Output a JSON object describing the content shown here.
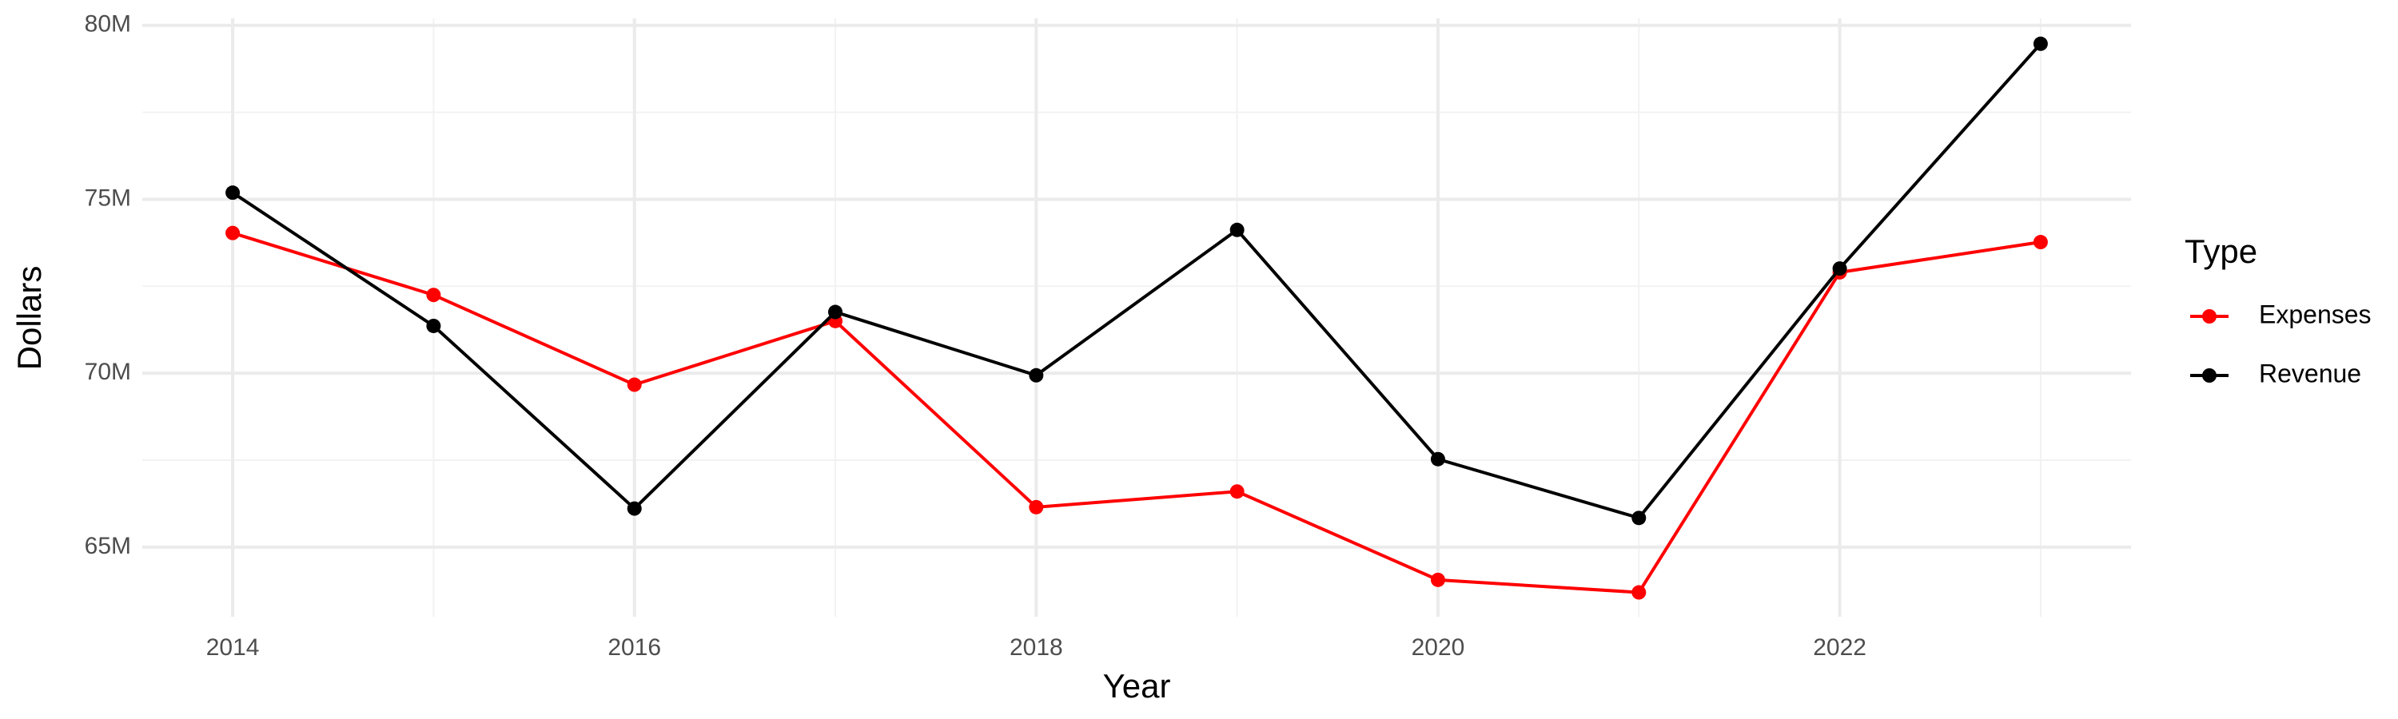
{
  "chart_data": {
    "type": "line",
    "x_label": "Year",
    "y_label": "Dollars",
    "legend_title": "Type",
    "x": [
      2014,
      2015,
      2016,
      2017,
      2018,
      2019,
      2020,
      2021,
      2022,
      2023
    ],
    "series": [
      {
        "name": "Expenses",
        "color": "#ff0000",
        "values": [
          74.03,
          72.25,
          69.67,
          71.5,
          66.15,
          66.6,
          64.06,
          63.7,
          72.9,
          73.77
        ]
      },
      {
        "name": "Revenue",
        "color": "#000000",
        "values": [
          75.19,
          71.36,
          66.11,
          71.76,
          69.94,
          74.12,
          67.53,
          65.84,
          73.01,
          79.47
        ]
      }
    ],
    "xlim": [
      2013.55,
      2023.45
    ],
    "ylim": [
      63.0,
      80.2
    ],
    "xticks": [
      2014,
      2016,
      2018,
      2020,
      2022
    ],
    "yticks": [
      {
        "value": 65,
        "label": "65M"
      },
      {
        "value": 70,
        "label": "70M"
      },
      {
        "value": 75,
        "label": "75M"
      },
      {
        "value": 80,
        "label": "80M"
      }
    ],
    "minor_xticks": [
      2015,
      2017,
      2019,
      2021,
      2023
    ],
    "minor_yticks": [
      67.5,
      72.5,
      77.5
    ],
    "grid": true,
    "legend_position": "right"
  }
}
